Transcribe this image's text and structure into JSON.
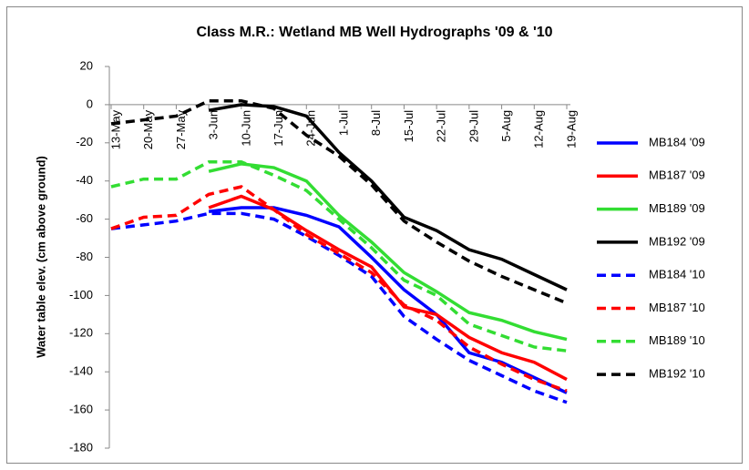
{
  "chart_data": {
    "type": "line",
    "title": "Class M.R.: Wetland MB Well Hydrographs '09 & '10",
    "y_label": "Water table elev. (cm above ground)",
    "categories": [
      "13-May",
      "20-May",
      "27-May",
      "3-Jun",
      "10-Jun",
      "17-Jun",
      "24-Jun",
      "1-Jul",
      "8-Jul",
      "15-Jul",
      "22-Jul",
      "29-Jul",
      "5-Aug",
      "12-Aug",
      "19-Aug"
    ],
    "ylim": [
      -180,
      20
    ],
    "yticks": [
      20,
      0,
      -20,
      -40,
      -60,
      -80,
      -100,
      -120,
      -140,
      -160,
      -180
    ],
    "grid": false,
    "legend": "right",
    "series": [
      {
        "name": "MB184 '09",
        "color": "#0000ff",
        "dash": false,
        "values": [
          null,
          null,
          null,
          -56,
          -54,
          -54,
          -58,
          -64,
          -80,
          -97,
          -110,
          -130,
          -135,
          -143,
          -151
        ]
      },
      {
        "name": "MB187 '09",
        "color": "#ff0000",
        "dash": false,
        "values": [
          null,
          null,
          null,
          -54,
          -48,
          -55,
          -66,
          -76,
          -85,
          -106,
          -110,
          -122,
          -130,
          -135,
          -144
        ]
      },
      {
        "name": "MB189 '09",
        "color": "#33dd33",
        "dash": false,
        "values": [
          null,
          null,
          null,
          -35,
          -31,
          -33,
          -40,
          -58,
          -72,
          -88,
          -98,
          -109,
          -113,
          -119,
          -123
        ]
      },
      {
        "name": "MB192 '09",
        "color": "#000000",
        "dash": false,
        "values": [
          null,
          null,
          null,
          -3,
          0,
          -1,
          -6,
          -25,
          -40,
          -59,
          -66,
          -76,
          -81,
          -89,
          -97
        ]
      },
      {
        "name": "MB184 '10",
        "color": "#0000ff",
        "dash": true,
        "values": [
          -65,
          -63,
          -61,
          -57,
          -57,
          -60,
          -69,
          -79,
          -90,
          -111,
          -123,
          -134,
          -142,
          -150,
          -156
        ]
      },
      {
        "name": "MB187 '10",
        "color": "#ff0000",
        "dash": true,
        "values": [
          -65,
          -59,
          -58,
          -47,
          -43,
          -55,
          -68,
          -78,
          -88,
          -105,
          -113,
          -127,
          -136,
          -144,
          -150
        ]
      },
      {
        "name": "MB189 '10",
        "color": "#33dd33",
        "dash": true,
        "values": [
          -43,
          -39,
          -39,
          -30,
          -30,
          -37,
          -45,
          -60,
          -75,
          -92,
          -100,
          -115,
          -121,
          -127,
          -129
        ]
      },
      {
        "name": "MB192 '10",
        "color": "#000000",
        "dash": true,
        "values": [
          -10,
          -8,
          -6,
          2,
          2,
          -2,
          -16,
          -27,
          -42,
          -61,
          -72,
          -82,
          -90,
          -97,
          -104
        ]
      }
    ]
  }
}
